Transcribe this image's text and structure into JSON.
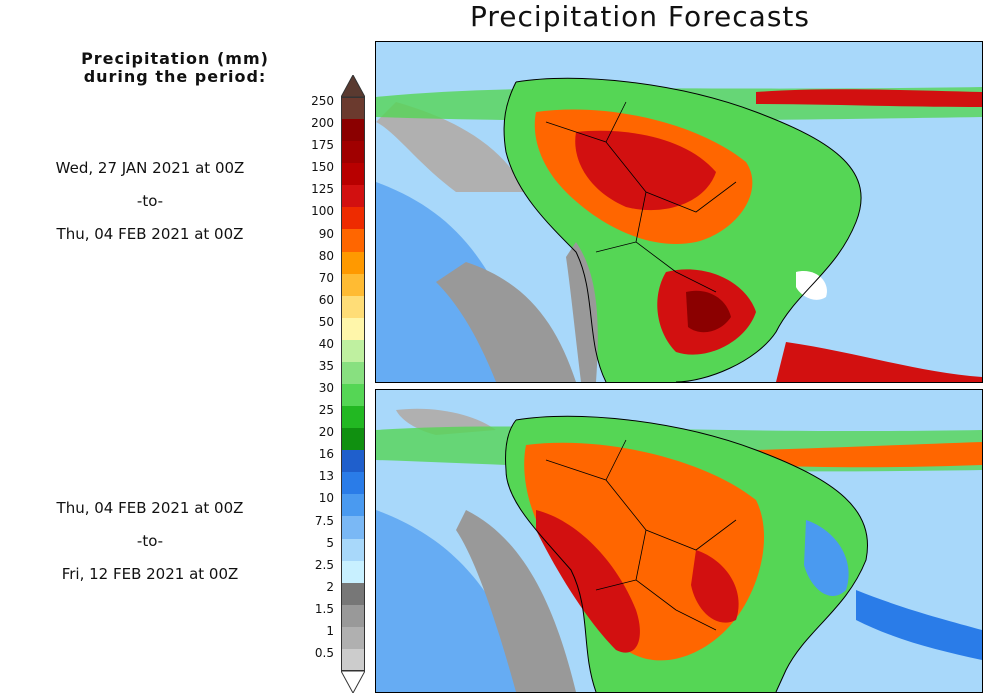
{
  "title": "Precipitation Forecasts",
  "legend": {
    "heading_line1": "Precipitation (mm)",
    "heading_line2": "during the period:",
    "bins": [
      {
        "label": "250",
        "color": "#6b3a2e"
      },
      {
        "label": "200",
        "color": "#8b0000"
      },
      {
        "label": "175",
        "color": "#a00000"
      },
      {
        "label": "150",
        "color": "#b80000"
      },
      {
        "label": "125",
        "color": "#d21010"
      },
      {
        "label": "100",
        "color": "#ee2b00"
      },
      {
        "label": "90",
        "color": "#ff6600"
      },
      {
        "label": "80",
        "color": "#ff9900"
      },
      {
        "label": "70",
        "color": "#ffbb33"
      },
      {
        "label": "60",
        "color": "#ffdd77"
      },
      {
        "label": "50",
        "color": "#fff6aa"
      },
      {
        "label": "40",
        "color": "#bff0a0"
      },
      {
        "label": "35",
        "color": "#88e080"
      },
      {
        "label": "30",
        "color": "#55d655"
      },
      {
        "label": "25",
        "color": "#22b822"
      },
      {
        "label": "20",
        "color": "#109010"
      },
      {
        "label": "16",
        "color": "#1f5fcc"
      },
      {
        "label": "13",
        "color": "#2a7ce8"
      },
      {
        "label": "10",
        "color": "#4a9af0"
      },
      {
        "label": "7.5",
        "color": "#7ab8f5"
      },
      {
        "label": "5",
        "color": "#a8d8fa"
      },
      {
        "label": "2.5",
        "color": "#c8f0ff"
      },
      {
        "label": "2",
        "color": "#777777"
      },
      {
        "label": "1.5",
        "color": "#999999"
      },
      {
        "label": "1",
        "color": "#b0b0b0"
      },
      {
        "label": "0.5",
        "color": "#cccccc"
      }
    ],
    "arrow_top_color": "#5a3a30",
    "arrow_bottom_color": "#ffffff"
  },
  "periods": [
    {
      "start": "Wed, 27 JAN 2021 at 00Z",
      "to": "-to-",
      "end": "Thu, 04 FEB 2021 at 00Z"
    },
    {
      "start": "Thu, 04 FEB 2021 at 00Z",
      "to": "-to-",
      "end": "Fri, 12 FEB 2021 at 00Z"
    }
  ],
  "maps": {
    "ocean_color": "#a8d8fa",
    "land_color": "#55d655",
    "border_color": "#000000"
  }
}
